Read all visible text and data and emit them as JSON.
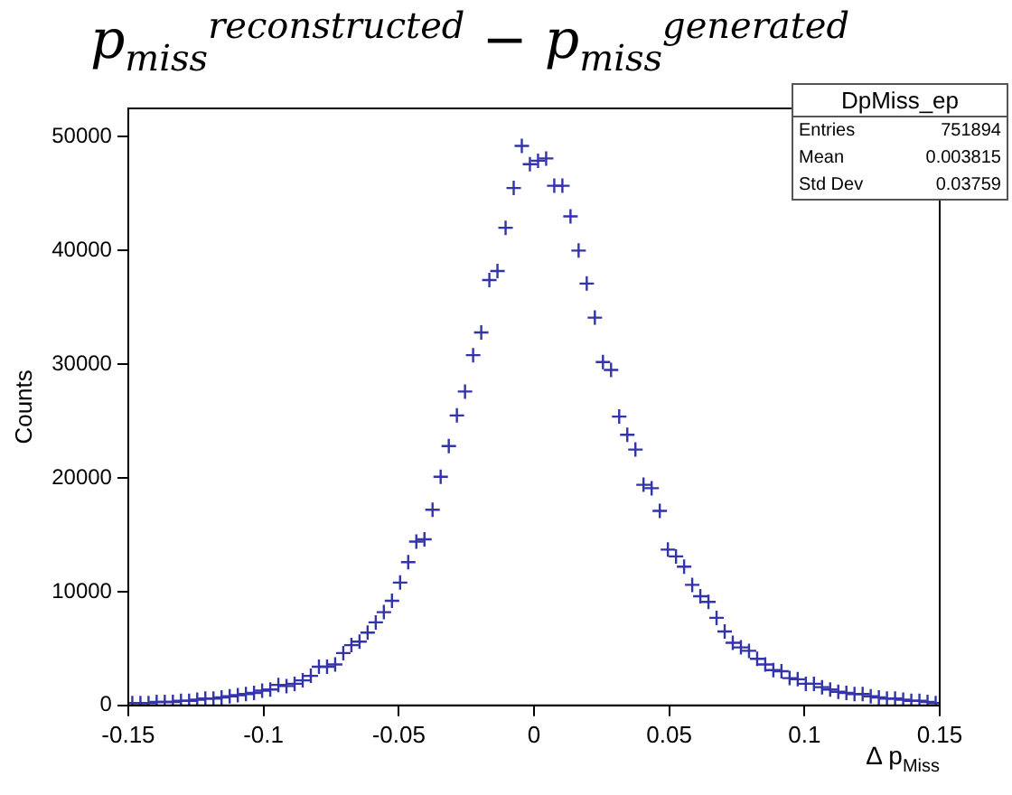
{
  "chart_data": {
    "type": "scatter",
    "title": "p$_{miss}$$^{reconstructed}$ − p$_{miss}$$^{generated}$",
    "xlabel": "Δ p$_{Miss}$",
    "ylabel": "Counts",
    "x": [
      -0.1485,
      -0.1455,
      -0.1425,
      -0.1395,
      -0.1365,
      -0.1335,
      -0.1305,
      -0.1275,
      -0.1245,
      -0.1215,
      -0.1185,
      -0.1155,
      -0.1125,
      -0.1095,
      -0.1065,
      -0.1035,
      -0.1005,
      -0.0975,
      -0.0945,
      -0.0915,
      -0.0885,
      -0.0855,
      -0.0825,
      -0.0795,
      -0.0765,
      -0.0735,
      -0.0705,
      -0.0675,
      -0.0645,
      -0.0615,
      -0.0585,
      -0.0555,
      -0.0525,
      -0.0495,
      -0.0465,
      -0.0435,
      -0.0405,
      -0.0375,
      -0.0345,
      -0.0315,
      -0.0285,
      -0.0255,
      -0.0225,
      -0.0195,
      -0.0165,
      -0.0135,
      -0.0105,
      -0.0075,
      -0.0045,
      -0.0015,
      0.0015,
      0.0045,
      0.0075,
      0.0105,
      0.0135,
      0.0165,
      0.0195,
      0.0225,
      0.0255,
      0.0285,
      0.0315,
      0.0345,
      0.0375,
      0.0405,
      0.0435,
      0.0465,
      0.0495,
      0.0525,
      0.0555,
      0.0585,
      0.0615,
      0.0645,
      0.0675,
      0.0705,
      0.0735,
      0.0765,
      0.0795,
      0.0825,
      0.0855,
      0.0885,
      0.0915,
      0.0945,
      0.0975,
      0.1005,
      0.1035,
      0.1065,
      0.1095,
      0.1125,
      0.1155,
      0.1185,
      0.1215,
      0.1245,
      0.1275,
      0.1305,
      0.1335,
      0.1365,
      0.1395,
      0.1425,
      0.1455,
      0.1485
    ],
    "values": [
      200,
      200,
      200,
      300,
      300,
      300,
      400,
      400,
      500,
      600,
      600,
      700,
      800,
      900,
      1000,
      1100,
      1300,
      1400,
      1800,
      1700,
      1900,
      2200,
      2600,
      3400,
      3400,
      3600,
      4600,
      5300,
      5600,
      6400,
      7300,
      8200,
      9200,
      10800,
      12600,
      14400,
      14600,
      17200,
      20100,
      22800,
      25500,
      27600,
      30800,
      32800,
      37400,
      38200,
      42000,
      45500,
      49200,
      47600,
      47900,
      48100,
      45700,
      45700,
      43000,
      40000,
      37100,
      34100,
      30200,
      29500,
      25400,
      23800,
      22500,
      19400,
      19100,
      17100,
      13700,
      13100,
      12200,
      10600,
      9600,
      9100,
      7700,
      6500,
      5500,
      5100,
      4800,
      4100,
      3600,
      3100,
      3000,
      2400,
      2300,
      1900,
      1900,
      1600,
      1400,
      1200,
      1100,
      1000,
      1000,
      800,
      700,
      600,
      600,
      500,
      400,
      400,
      300,
      200
    ],
    "color": "#3333aa",
    "marker": "cross",
    "grid": false,
    "legend": false,
    "xlim": [
      -0.15,
      0.15
    ],
    "xticks": [
      -0.15,
      -0.1,
      -0.05,
      0,
      0.05,
      0.1,
      0.15
    ],
    "ylim": [
      0,
      52500
    ],
    "yticks": [
      0,
      10000,
      20000,
      30000,
      40000,
      50000
    ],
    "annotations": [
      "DpMiss_ep",
      "Entries",
      "751894",
      "Mean",
      "0.003815",
      "Std Dev",
      "0.03759"
    ]
  }
}
